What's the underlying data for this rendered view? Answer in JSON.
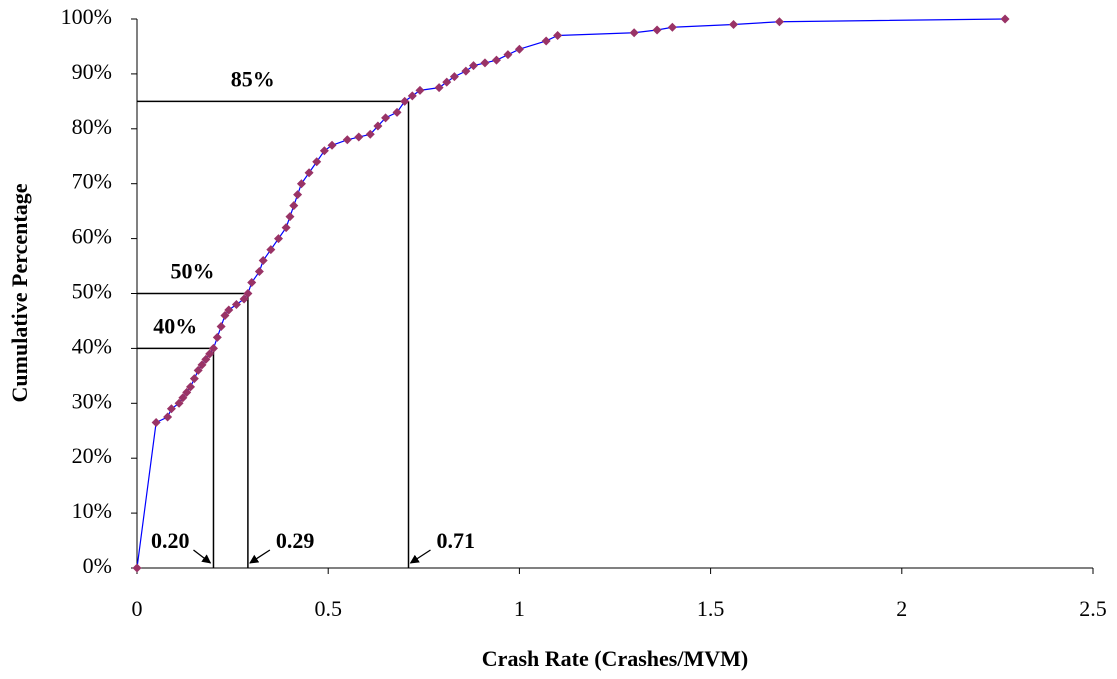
{
  "chart_data": {
    "type": "line",
    "x_label": "Crash Rate (Crashes/MVM)",
    "y_label": "Cumulative Percentage",
    "xlim": [
      0,
      2.5
    ],
    "xticks": [
      0,
      0.5,
      1,
      1.5,
      2,
      2.5
    ],
    "ylim": [
      0,
      100
    ],
    "yticks": [
      {
        "value": 0,
        "label": "0%"
      },
      {
        "value": 10,
        "label": "10%"
      },
      {
        "value": 20,
        "label": "20%"
      },
      {
        "value": 30,
        "label": "30%"
      },
      {
        "value": 40,
        "label": "40%"
      },
      {
        "value": 50,
        "label": "50%"
      },
      {
        "value": 60,
        "label": "60%"
      },
      {
        "value": 70,
        "label": "70%"
      },
      {
        "value": 80,
        "label": "80%"
      },
      {
        "value": 90,
        "label": "90%"
      },
      {
        "value": 100,
        "label": "100%"
      }
    ],
    "grid": false,
    "x": [
      0,
      0.05,
      0.08,
      0.09,
      0.11,
      0.12,
      0.13,
      0.14,
      0.15,
      0.16,
      0.17,
      0.18,
      0.19,
      0.2,
      0.21,
      0.22,
      0.23,
      0.24,
      0.26,
      0.28,
      0.29,
      0.3,
      0.32,
      0.33,
      0.35,
      0.37,
      0.39,
      0.4,
      0.41,
      0.42,
      0.43,
      0.45,
      0.47,
      0.49,
      0.51,
      0.55,
      0.58,
      0.61,
      0.63,
      0.65,
      0.68,
      0.7,
      0.72,
      0.74,
      0.79,
      0.81,
      0.83,
      0.86,
      0.88,
      0.91,
      0.94,
      0.97,
      1.0,
      1.07,
      1.1,
      1.3,
      1.36,
      1.4,
      1.56,
      1.68,
      2.27
    ],
    "series": [
      {
        "color": "#0000ff",
        "marker_color": "#993366",
        "values": [
          0,
          26.5,
          27.5,
          29,
          30,
          31,
          32,
          33,
          34.5,
          36,
          37,
          38,
          39,
          40,
          42,
          44,
          46,
          47,
          48,
          49,
          50,
          52,
          54,
          56,
          58,
          60,
          62,
          64,
          66,
          68,
          70,
          72,
          74,
          76,
          77,
          78,
          78.5,
          79,
          80.5,
          82,
          83,
          85,
          86,
          87,
          87.5,
          88.5,
          89.5,
          90.5,
          91.5,
          92,
          92.5,
          93.5,
          94.5,
          96,
          97,
          97.5,
          98,
          98.5,
          99,
          99.5,
          100
        ]
      }
    ],
    "annotations": [
      {
        "x": 0.2,
        "y": 40,
        "y_text": "40%",
        "x_text": "0.20"
      },
      {
        "x": 0.29,
        "y": 50,
        "y_text": "50%",
        "x_text": "0.29"
      },
      {
        "x": 0.71,
        "y": 85,
        "y_text": "85%",
        "x_text": "0.71"
      }
    ]
  }
}
